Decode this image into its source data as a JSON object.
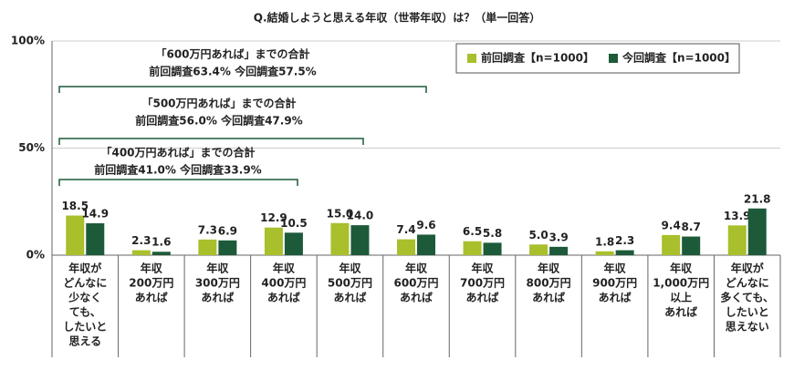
{
  "chart_data": {
    "type": "bar",
    "title": "Q.結婚しようと思える年収（世帯年収）は？（単一回答）",
    "categories": [
      [
        "年収が",
        "どんなに",
        "少なく",
        "ても、",
        "したいと",
        "思える"
      ],
      [
        "年収",
        "200万円",
        "あれば"
      ],
      [
        "年収",
        "300万円",
        "あれば"
      ],
      [
        "年収",
        "400万円",
        "あれば"
      ],
      [
        "年収",
        "500万円",
        "あれば"
      ],
      [
        "年収",
        "600万円",
        "あれば"
      ],
      [
        "年収",
        "700万円",
        "あれば"
      ],
      [
        "年収",
        "800万円",
        "あれば"
      ],
      [
        "年収",
        "900万円",
        "あれば"
      ],
      [
        "年収",
        "1,000万円",
        "以上",
        "あれば"
      ],
      [
        "年収が",
        "どんなに",
        "多くても、",
        "したいと",
        "思えない"
      ]
    ],
    "series": [
      {
        "name": "前回調査【n=1000】",
        "color": "#a9bf2c",
        "values": [
          18.5,
          2.3,
          7.3,
          12.9,
          15.0,
          7.4,
          6.5,
          5.0,
          1.8,
          9.4,
          13.9
        ],
        "value_labels": [
          "18.5",
          "2.3",
          "7.3",
          "12.9",
          "15.0",
          "7.4",
          "6.5",
          "5.0",
          "1.8",
          "9.4",
          "13.9"
        ]
      },
      {
        "name": "今回調査【n=1000】",
        "color": "#1d5a3a",
        "values": [
          14.9,
          1.6,
          6.9,
          10.5,
          14.0,
          9.6,
          5.8,
          3.9,
          2.3,
          8.7,
          21.8
        ],
        "value_labels": [
          "14.9",
          "1.6",
          "6.9",
          "10.5",
          "14.0",
          "9.6",
          "5.8",
          "3.9",
          "2.3",
          "8.7",
          "21.8"
        ]
      }
    ],
    "ylim": [
      0,
      100
    ],
    "yticks": [
      {
        "value": 0,
        "label": "0%"
      },
      {
        "value": 50,
        "label": "50%"
      },
      {
        "value": 100,
        "label": "100%"
      }
    ],
    "grid": true,
    "annotations": [
      [
        "「600万円あれば」までの合計",
        "前回調査63.4%  今回調査57.5%"
      ],
      [
        "「500万円あれば」までの合計",
        "前回調査56.0%  今回調査47.9%"
      ],
      [
        "「400万円あれば」までの合計",
        "前回調査41.0%  今回調査33.9%"
      ]
    ]
  }
}
